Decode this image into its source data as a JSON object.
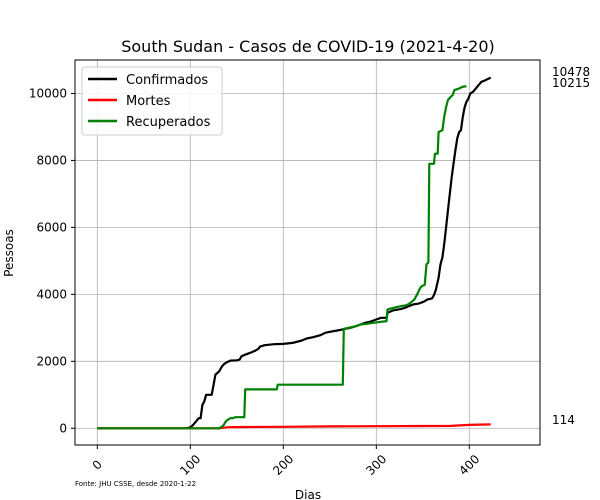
{
  "chart_data": {
    "type": "line",
    "title": "South Sudan - Casos de COVID-19 (2021-4-20)",
    "xlabel": "Dias",
    "ylabel": "Pessoas",
    "source_note": "Fonte: JHU CSSE, desde 2020-1-22",
    "xlim": [
      -24,
      476
    ],
    "ylim": [
      -500,
      11000
    ],
    "x_ticks": [
      0,
      100,
      200,
      300,
      400
    ],
    "y_ticks": [
      0,
      2000,
      4000,
      6000,
      8000,
      10000
    ],
    "x_tick_labels": [
      "0",
      "100",
      "200",
      "300",
      "400"
    ],
    "y_tick_labels": [
      "0",
      "2000",
      "4000",
      "6000",
      "8000",
      "10000"
    ],
    "grid": true,
    "legend_position": "upper-left",
    "end_labels": [
      "10478",
      "10215",
      "114"
    ],
    "series": [
      {
        "name": "Confirmados",
        "color": "#000000",
        "end_label": "10478",
        "points": [
          [
            0,
            0
          ],
          [
            95,
            0
          ],
          [
            99,
            20
          ],
          [
            101,
            50
          ],
          [
            103,
            100
          ],
          [
            106,
            200
          ],
          [
            109,
            300
          ],
          [
            111,
            300
          ],
          [
            113,
            700
          ],
          [
            115,
            800
          ],
          [
            117,
            1000
          ],
          [
            121,
            1000
          ],
          [
            123,
            1000
          ],
          [
            125,
            1300
          ],
          [
            127,
            1600
          ],
          [
            129,
            1650
          ],
          [
            131,
            1700
          ],
          [
            133,
            1800
          ],
          [
            135,
            1880
          ],
          [
            137,
            1930
          ],
          [
            140,
            1980
          ],
          [
            143,
            2020
          ],
          [
            150,
            2030
          ],
          [
            153,
            2050
          ],
          [
            155,
            2150
          ],
          [
            160,
            2210
          ],
          [
            165,
            2260
          ],
          [
            170,
            2320
          ],
          [
            173,
            2370
          ],
          [
            175,
            2440
          ],
          [
            180,
            2480
          ],
          [
            190,
            2510
          ],
          [
            200,
            2520
          ],
          [
            210,
            2550
          ],
          [
            220,
            2620
          ],
          [
            225,
            2680
          ],
          [
            232,
            2720
          ],
          [
            240,
            2780
          ],
          [
            245,
            2850
          ],
          [
            250,
            2880
          ],
          [
            258,
            2920
          ],
          [
            265,
            2960
          ],
          [
            272,
            3000
          ],
          [
            278,
            3050
          ],
          [
            283,
            3100
          ],
          [
            288,
            3150
          ],
          [
            293,
            3180
          ],
          [
            297,
            3220
          ],
          [
            300,
            3250
          ],
          [
            305,
            3300
          ],
          [
            311,
            3300
          ],
          [
            312,
            3450
          ],
          [
            318,
            3520
          ],
          [
            326,
            3560
          ],
          [
            330,
            3590
          ],
          [
            335,
            3650
          ],
          [
            340,
            3700
          ],
          [
            345,
            3720
          ],
          [
            348,
            3750
          ],
          [
            351,
            3780
          ],
          [
            355,
            3850
          ],
          [
            360,
            3880
          ],
          [
            362,
            3980
          ],
          [
            364,
            4130
          ],
          [
            367,
            4500
          ],
          [
            369,
            4900
          ],
          [
            371,
            5100
          ],
          [
            373,
            5500
          ],
          [
            375,
            6000
          ],
          [
            377,
            6500
          ],
          [
            379,
            7000
          ],
          [
            381,
            7500
          ],
          [
            383,
            7900
          ],
          [
            385,
            8300
          ],
          [
            387,
            8650
          ],
          [
            389,
            8850
          ],
          [
            391,
            8900
          ],
          [
            393,
            9300
          ],
          [
            395,
            9600
          ],
          [
            397,
            9750
          ],
          [
            399,
            9850
          ],
          [
            401,
            10000
          ],
          [
            404,
            10050
          ],
          [
            407,
            10150
          ],
          [
            410,
            10250
          ],
          [
            413,
            10350
          ],
          [
            416,
            10380
          ],
          [
            419,
            10420
          ],
          [
            422,
            10460
          ],
          [
            423,
            10478
          ]
        ]
      },
      {
        "name": "Mortes",
        "color": "#ff0000",
        "end_label": "114",
        "points": [
          [
            0,
            0
          ],
          [
            130,
            0
          ],
          [
            135,
            15
          ],
          [
            140,
            30
          ],
          [
            145,
            35
          ],
          [
            160,
            38
          ],
          [
            200,
            45
          ],
          [
            250,
            55
          ],
          [
            300,
            62
          ],
          [
            350,
            68
          ],
          [
            380,
            70
          ],
          [
            390,
            85
          ],
          [
            400,
            100
          ],
          [
            410,
            108
          ],
          [
            423,
            114
          ]
        ]
      },
      {
        "name": "Recuperados",
        "color": "#008000",
        "end_label": "10215",
        "points": [
          [
            0,
            0
          ],
          [
            131,
            0
          ],
          [
            133,
            30
          ],
          [
            136,
            100
          ],
          [
            138,
            200
          ],
          [
            140,
            250
          ],
          [
            143,
            300
          ],
          [
            146,
            300
          ],
          [
            148,
            330
          ],
          [
            158,
            330
          ],
          [
            159,
            1160
          ],
          [
            175,
            1160
          ],
          [
            193,
            1160
          ],
          [
            194,
            1300
          ],
          [
            260,
            1300
          ],
          [
            264,
            1300
          ],
          [
            265,
            2970
          ],
          [
            270,
            3000
          ],
          [
            278,
            3050
          ],
          [
            283,
            3100
          ],
          [
            290,
            3120
          ],
          [
            297,
            3150
          ],
          [
            305,
            3180
          ],
          [
            311,
            3200
          ],
          [
            312,
            3550
          ],
          [
            319,
            3600
          ],
          [
            327,
            3650
          ],
          [
            333,
            3680
          ],
          [
            337,
            3750
          ],
          [
            341,
            3850
          ],
          [
            344,
            4000
          ],
          [
            347,
            4180
          ],
          [
            349,
            4250
          ],
          [
            352,
            4280
          ],
          [
            354,
            4900
          ],
          [
            356,
            4950
          ],
          [
            357,
            7900
          ],
          [
            362,
            7900
          ],
          [
            363,
            8200
          ],
          [
            366,
            8200
          ],
          [
            367,
            8850
          ],
          [
            371,
            8900
          ],
          [
            373,
            9300
          ],
          [
            375,
            9600
          ],
          [
            377,
            9800
          ],
          [
            380,
            9900
          ],
          [
            382,
            9950
          ],
          [
            384,
            10100
          ],
          [
            389,
            10150
          ],
          [
            391,
            10180
          ],
          [
            393,
            10200
          ],
          [
            395,
            10210
          ],
          [
            397,
            10215
          ]
        ]
      }
    ]
  }
}
